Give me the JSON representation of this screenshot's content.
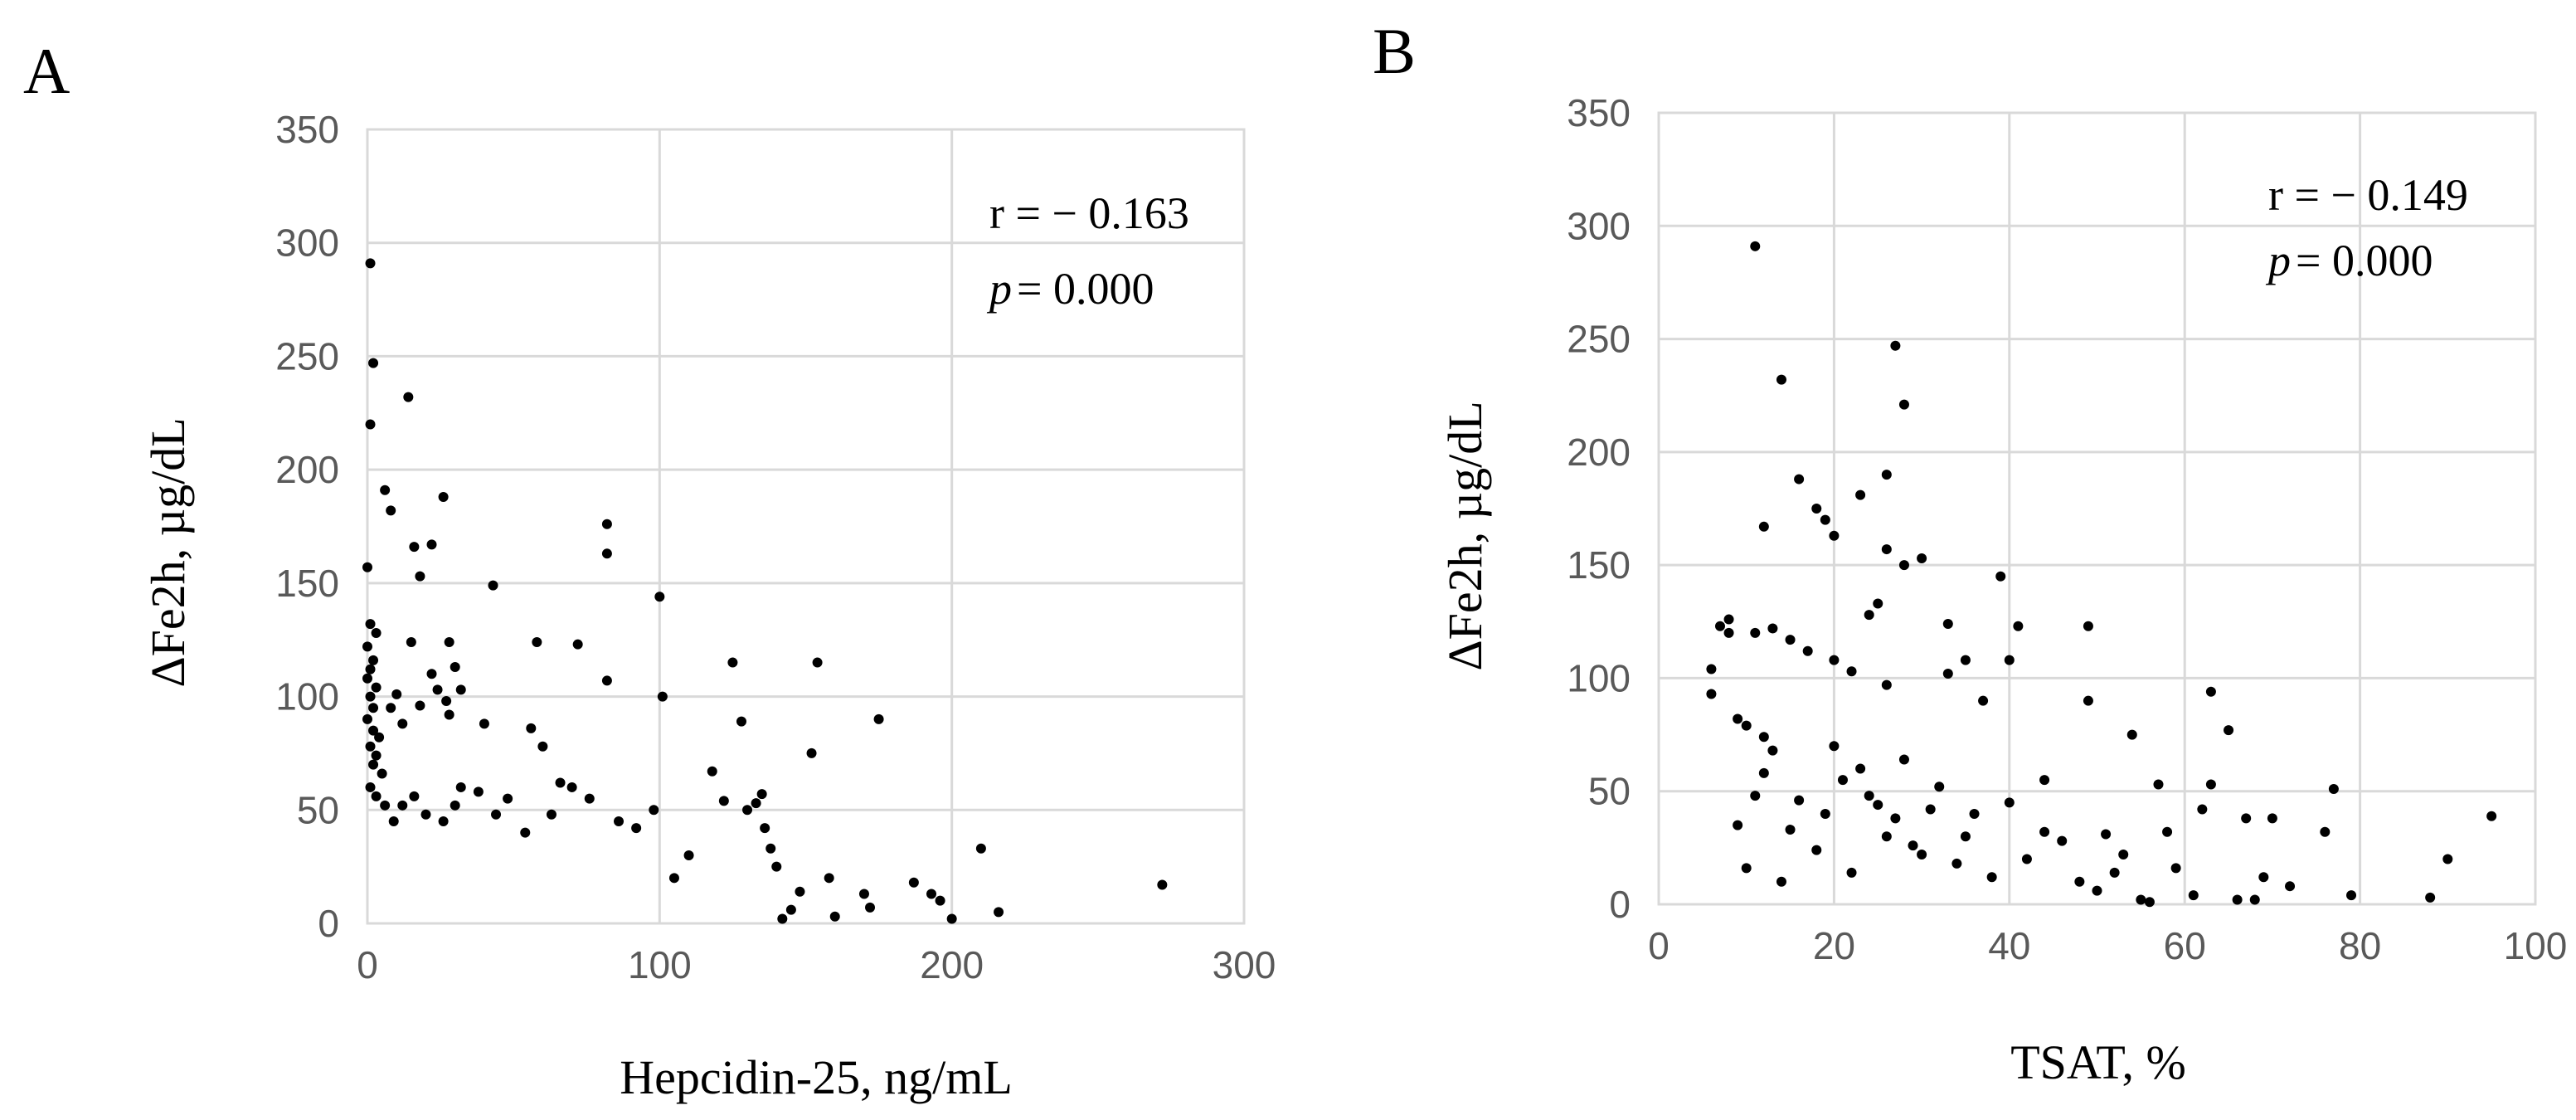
{
  "chart_data": [
    {
      "type": "scatter",
      "panel_label": "A",
      "xlabel": "Hepcidin-25, ng/mL",
      "ylabel": "ΔFe2h, µg/dL",
      "xlim": [
        0,
        300
      ],
      "ylim": [
        0,
        350
      ],
      "x_ticks": [
        "0",
        "100",
        "200",
        "300"
      ],
      "y_ticks": [
        "0",
        "50",
        "100",
        "150",
        "200",
        "250",
        "300",
        "350"
      ],
      "grid": true,
      "annotation": {
        "r_text": "r = − 0.163",
        "p_symbol": "p",
        "p_text": "= 0.000"
      },
      "points": [
        [
          1,
          291
        ],
        [
          2,
          247
        ],
        [
          1,
          220
        ],
        [
          14,
          232
        ],
        [
          6,
          191
        ],
        [
          8,
          182
        ],
        [
          26,
          188
        ],
        [
          22,
          167
        ],
        [
          16,
          166
        ],
        [
          18,
          153
        ],
        [
          0,
          157
        ],
        [
          43,
          149
        ],
        [
          100,
          144
        ],
        [
          82,
          176
        ],
        [
          82,
          163
        ],
        [
          58,
          124
        ],
        [
          72,
          123
        ],
        [
          125,
          115
        ],
        [
          154,
          115
        ],
        [
          28,
          124
        ],
        [
          15,
          124
        ],
        [
          1,
          132
        ],
        [
          3,
          128
        ],
        [
          0,
          122
        ],
        [
          2,
          116
        ],
        [
          1,
          112
        ],
        [
          0,
          108
        ],
        [
          3,
          104
        ],
        [
          1,
          100
        ],
        [
          2,
          95
        ],
        [
          0,
          90
        ],
        [
          2,
          85
        ],
        [
          4,
          82
        ],
        [
          1,
          78
        ],
        [
          3,
          74
        ],
        [
          2,
          70
        ],
        [
          5,
          66
        ],
        [
          1,
          60
        ],
        [
          3,
          56
        ],
        [
          6,
          52
        ],
        [
          8,
          95
        ],
        [
          10,
          101
        ],
        [
          12,
          88
        ],
        [
          18,
          96
        ],
        [
          22,
          110
        ],
        [
          24,
          103
        ],
        [
          30,
          113
        ],
        [
          32,
          103
        ],
        [
          27,
          98
        ],
        [
          28,
          92
        ],
        [
          40,
          88
        ],
        [
          56,
          86
        ],
        [
          60,
          78
        ],
        [
          82,
          107
        ],
        [
          101,
          100
        ],
        [
          128,
          89
        ],
        [
          175,
          90
        ],
        [
          152,
          75
        ],
        [
          118,
          67
        ],
        [
          135,
          57
        ],
        [
          133,
          53
        ],
        [
          130,
          50
        ],
        [
          210,
          33
        ],
        [
          272,
          17
        ],
        [
          216,
          5
        ],
        [
          200,
          2
        ],
        [
          187,
          18
        ],
        [
          193,
          13
        ],
        [
          196,
          10
        ],
        [
          170,
          13
        ],
        [
          172,
          7
        ],
        [
          160,
          3
        ],
        [
          158,
          20
        ],
        [
          148,
          14
        ],
        [
          145,
          6
        ],
        [
          142,
          2
        ],
        [
          140,
          25
        ],
        [
          138,
          33
        ],
        [
          136,
          42
        ],
        [
          122,
          54
        ],
        [
          110,
          30
        ],
        [
          105,
          20
        ],
        [
          98,
          50
        ],
        [
          92,
          42
        ],
        [
          86,
          45
        ],
        [
          76,
          55
        ],
        [
          70,
          60
        ],
        [
          66,
          62
        ],
        [
          63,
          48
        ],
        [
          54,
          40
        ],
        [
          48,
          55
        ],
        [
          44,
          48
        ],
        [
          38,
          58
        ],
        [
          32,
          60
        ],
        [
          30,
          52
        ],
        [
          26,
          45
        ],
        [
          20,
          48
        ],
        [
          16,
          56
        ],
        [
          12,
          52
        ],
        [
          9,
          45
        ]
      ]
    },
    {
      "type": "scatter",
      "panel_label": "B",
      "xlabel": "TSAT,   %",
      "ylabel": "ΔFe2h, µg/dL",
      "xlim": [
        0,
        100
      ],
      "ylim": [
        0,
        350
      ],
      "x_ticks": [
        "0",
        "20",
        "40",
        "60",
        "80",
        "100"
      ],
      "y_ticks": [
        "0",
        "50",
        "100",
        "150",
        "200",
        "250",
        "300",
        "350"
      ],
      "grid": true,
      "annotation": {
        "r_text": "r  = − 0.149",
        "p_symbol": "p",
        "p_text": "= 0.000"
      },
      "points": [
        [
          11,
          291
        ],
        [
          27,
          247
        ],
        [
          28,
          221
        ],
        [
          14,
          232
        ],
        [
          16,
          188
        ],
        [
          26,
          190
        ],
        [
          23,
          181
        ],
        [
          18,
          175
        ],
        [
          19,
          170
        ],
        [
          20,
          163
        ],
        [
          12,
          167
        ],
        [
          26,
          157
        ],
        [
          28,
          150
        ],
        [
          30,
          153
        ],
        [
          39,
          145
        ],
        [
          33,
          124
        ],
        [
          41,
          123
        ],
        [
          49,
          123
        ],
        [
          25,
          133
        ],
        [
          24,
          128
        ],
        [
          8,
          126
        ],
        [
          7,
          123
        ],
        [
          8,
          120
        ],
        [
          11,
          120
        ],
        [
          13,
          122
        ],
        [
          15,
          117
        ],
        [
          17,
          112
        ],
        [
          20,
          108
        ],
        [
          22,
          103
        ],
        [
          26,
          97
        ],
        [
          33,
          102
        ],
        [
          35,
          108
        ],
        [
          37,
          90
        ],
        [
          6,
          104
        ],
        [
          6,
          93
        ],
        [
          9,
          82
        ],
        [
          10,
          79
        ],
        [
          12,
          74
        ],
        [
          13,
          68
        ],
        [
          40,
          108
        ],
        [
          63,
          94
        ],
        [
          65,
          77
        ],
        [
          54,
          75
        ],
        [
          49,
          90
        ],
        [
          63,
          53
        ],
        [
          44,
          55
        ],
        [
          57,
          53
        ],
        [
          62,
          42
        ],
        [
          58,
          32
        ],
        [
          67,
          38
        ],
        [
          70,
          38
        ],
        [
          77,
          51
        ],
        [
          76,
          32
        ],
        [
          95,
          39
        ],
        [
          90,
          20
        ],
        [
          88,
          3
        ],
        [
          79,
          4
        ],
        [
          72,
          8
        ],
        [
          69,
          12
        ],
        [
          68,
          2
        ],
        [
          66,
          2
        ],
        [
          61,
          4
        ],
        [
          59,
          16
        ],
        [
          56,
          1
        ],
        [
          55,
          2
        ],
        [
          53,
          22
        ],
        [
          52,
          14
        ],
        [
          51,
          31
        ],
        [
          50,
          6
        ],
        [
          48,
          10
        ],
        [
          46,
          28
        ],
        [
          44,
          32
        ],
        [
          42,
          20
        ],
        [
          40,
          45
        ],
        [
          38,
          12
        ],
        [
          36,
          40
        ],
        [
          34,
          18
        ],
        [
          32,
          52
        ],
        [
          30,
          22
        ],
        [
          28,
          64
        ],
        [
          26,
          30
        ],
        [
          24,
          48
        ],
        [
          22,
          14
        ],
        [
          20,
          70
        ],
        [
          18,
          24
        ],
        [
          16,
          46
        ],
        [
          14,
          10
        ],
        [
          12,
          58
        ],
        [
          10,
          16
        ],
        [
          9,
          35
        ],
        [
          11,
          48
        ],
        [
          15,
          33
        ],
        [
          19,
          40
        ],
        [
          21,
          55
        ],
        [
          23,
          60
        ],
        [
          25,
          44
        ],
        [
          27,
          38
        ],
        [
          29,
          26
        ],
        [
          31,
          42
        ],
        [
          35,
          30
        ]
      ]
    }
  ]
}
